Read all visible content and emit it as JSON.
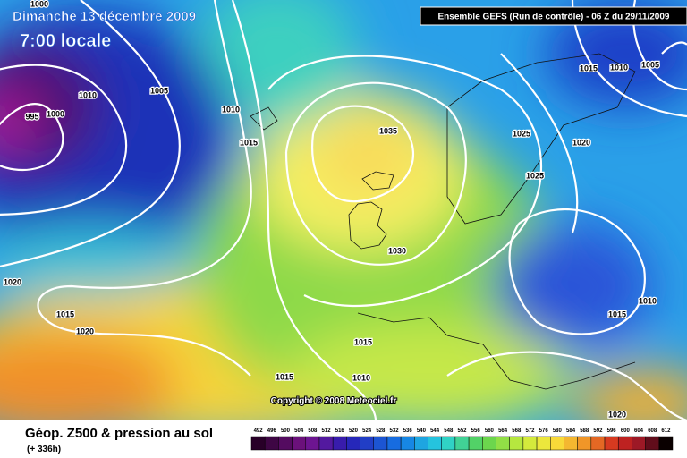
{
  "header": {
    "date": "Dimanche 13 décembre 2009",
    "time": "7:00 locale",
    "model": "Ensemble GEFS (Run de contrôle)  -  06 Z du 29/11/2009"
  },
  "isobar_labels": [
    "1000",
    "1010",
    "1005",
    "995",
    "1000",
    "1010",
    "1015",
    "1035",
    "1025",
    "1025",
    "1020",
    "1015",
    "1010",
    "1005",
    "1030",
    "1020",
    "1015",
    "1020",
    "1015",
    "1015",
    "1010",
    "1015",
    "1010",
    "1020"
  ],
  "copyright": "Copyright © 2008 Meteociel.fr",
  "footer": {
    "title": "Géop. Z500 & pression au sol",
    "lead": "(+ 336h)",
    "scale_labels": [
      "492",
      "496",
      "500",
      "504",
      "508",
      "512",
      "516",
      "520",
      "524",
      "528",
      "532",
      "536",
      "540",
      "544",
      "548",
      "552",
      "556",
      "560",
      "564",
      "568",
      "572",
      "576",
      "580",
      "584",
      "588",
      "592",
      "596",
      "600",
      "604",
      "608",
      "612"
    ]
  }
}
